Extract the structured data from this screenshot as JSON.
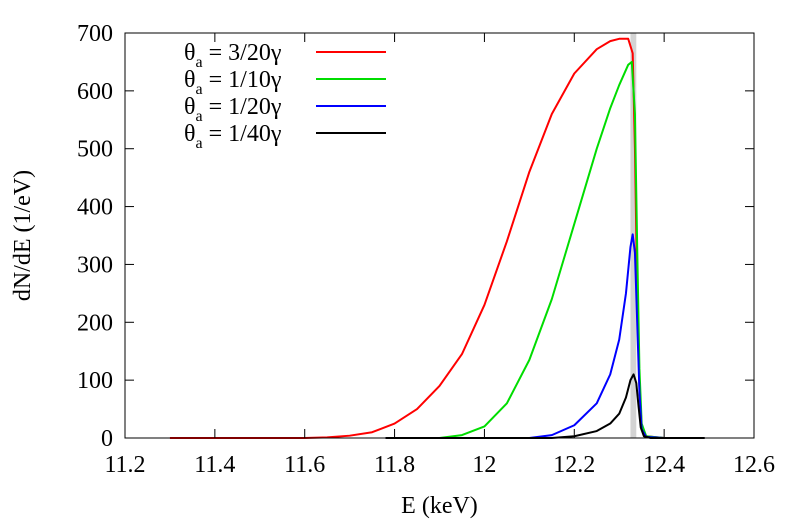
{
  "chart_data": {
    "type": "line",
    "title": "",
    "xlabel": "E (keV)",
    "ylabel": "dN/dE (1/eV)",
    "xlim": [
      11.2,
      12.6
    ],
    "ylim": [
      0,
      700
    ],
    "grid": false,
    "legend_position": "top-left",
    "x_ticks": [
      "11.2",
      "11.4",
      "11.6",
      "11.8",
      "12",
      "12.2",
      "12.4",
      "12.6"
    ],
    "y_ticks": [
      "0",
      "100",
      "200",
      "300",
      "400",
      "500",
      "600",
      "700"
    ],
    "highlight_band": {
      "x_from": 12.325,
      "x_to": 12.338,
      "color": "#d3d3d3"
    },
    "series": [
      {
        "name": "θa = 3/20γ",
        "legend": {
          "theta": "θ",
          "sub": "a",
          "rest": " = 3/20γ"
        },
        "color": "#ff0000",
        "points": [
          [
            11.3,
            0
          ],
          [
            11.6,
            0
          ],
          [
            11.65,
            1
          ],
          [
            11.7,
            4
          ],
          [
            11.75,
            10
          ],
          [
            11.8,
            25
          ],
          [
            11.85,
            50
          ],
          [
            11.9,
            90
          ],
          [
            11.95,
            145
          ],
          [
            12.0,
            230
          ],
          [
            12.05,
            340
          ],
          [
            12.1,
            460
          ],
          [
            12.15,
            560
          ],
          [
            12.2,
            630
          ],
          [
            12.25,
            672
          ],
          [
            12.28,
            686
          ],
          [
            12.3,
            690
          ],
          [
            12.32,
            690
          ],
          [
            12.33,
            665
          ],
          [
            12.335,
            500
          ],
          [
            12.34,
            250
          ],
          [
            12.345,
            90
          ],
          [
            12.35,
            20
          ],
          [
            12.36,
            3
          ],
          [
            12.4,
            0
          ],
          [
            12.49,
            0
          ]
        ]
      },
      {
        "name": "θa = 1/10γ",
        "legend": {
          "theta": "θ",
          "sub": "a",
          "rest": " = 1/10γ"
        },
        "color": "#00dd00",
        "points": [
          [
            11.78,
            0
          ],
          [
            11.9,
            0
          ],
          [
            11.95,
            5
          ],
          [
            12.0,
            20
          ],
          [
            12.05,
            60
          ],
          [
            12.1,
            135
          ],
          [
            12.15,
            240
          ],
          [
            12.2,
            370
          ],
          [
            12.25,
            500
          ],
          [
            12.28,
            570
          ],
          [
            12.3,
            610
          ],
          [
            12.32,
            645
          ],
          [
            12.328,
            650
          ],
          [
            12.335,
            560
          ],
          [
            12.34,
            330
          ],
          [
            12.345,
            120
          ],
          [
            12.35,
            25
          ],
          [
            12.36,
            3
          ],
          [
            12.4,
            0
          ],
          [
            12.49,
            0
          ]
        ]
      },
      {
        "name": "θa = 1/20γ",
        "legend": {
          "theta": "θ",
          "sub": "a",
          "rest": " = 1/20γ"
        },
        "color": "#0000ff",
        "points": [
          [
            11.78,
            0
          ],
          [
            12.1,
            0
          ],
          [
            12.15,
            5
          ],
          [
            12.2,
            22
          ],
          [
            12.25,
            60
          ],
          [
            12.28,
            110
          ],
          [
            12.3,
            170
          ],
          [
            12.315,
            250
          ],
          [
            12.325,
            330
          ],
          [
            12.33,
            352
          ],
          [
            12.335,
            320
          ],
          [
            12.34,
            200
          ],
          [
            12.345,
            80
          ],
          [
            12.35,
            15
          ],
          [
            12.36,
            2
          ],
          [
            12.4,
            0
          ],
          [
            12.49,
            0
          ]
        ]
      },
      {
        "name": "θa = 1/40γ",
        "legend": {
          "theta": "θ",
          "sub": "a",
          "rest": " = 1/40γ"
        },
        "color": "#000000",
        "points": [
          [
            11.78,
            0
          ],
          [
            12.15,
            0
          ],
          [
            12.2,
            3
          ],
          [
            12.25,
            12
          ],
          [
            12.28,
            25
          ],
          [
            12.3,
            42
          ],
          [
            12.315,
            70
          ],
          [
            12.325,
            100
          ],
          [
            12.332,
            110
          ],
          [
            12.338,
            95
          ],
          [
            12.343,
            55
          ],
          [
            12.348,
            18
          ],
          [
            12.355,
            3
          ],
          [
            12.37,
            0
          ],
          [
            12.49,
            0
          ]
        ]
      }
    ]
  }
}
